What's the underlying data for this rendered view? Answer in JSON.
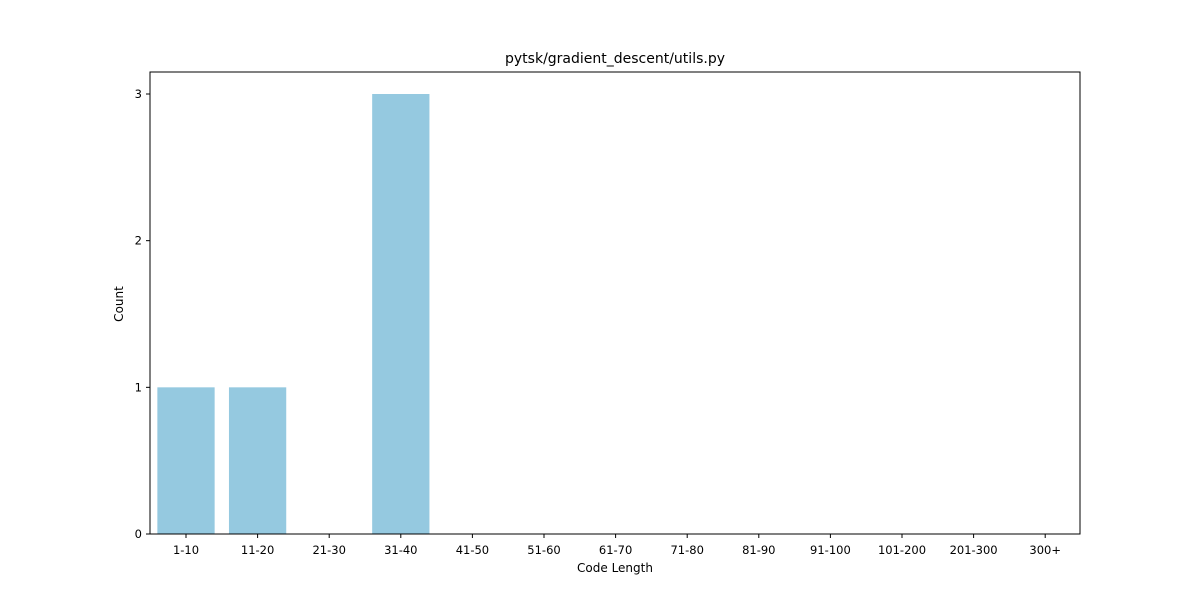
{
  "chart_data": {
    "type": "bar",
    "title": "pytsk/gradient_descent/utils.py",
    "xlabel": "Code Length",
    "ylabel": "Count",
    "categories": [
      "1-10",
      "11-20",
      "21-30",
      "31-40",
      "41-50",
      "51-60",
      "61-70",
      "71-80",
      "81-90",
      "91-100",
      "101-200",
      "201-300",
      "300+"
    ],
    "values": [
      1,
      1,
      0,
      3,
      0,
      0,
      0,
      0,
      0,
      0,
      0,
      0,
      0
    ],
    "yticks": [
      "0",
      "1",
      "2",
      "3"
    ],
    "ylim": [
      0,
      3.15
    ],
    "bar_color": "#95c9e0",
    "grid": false,
    "legend": "none"
  }
}
